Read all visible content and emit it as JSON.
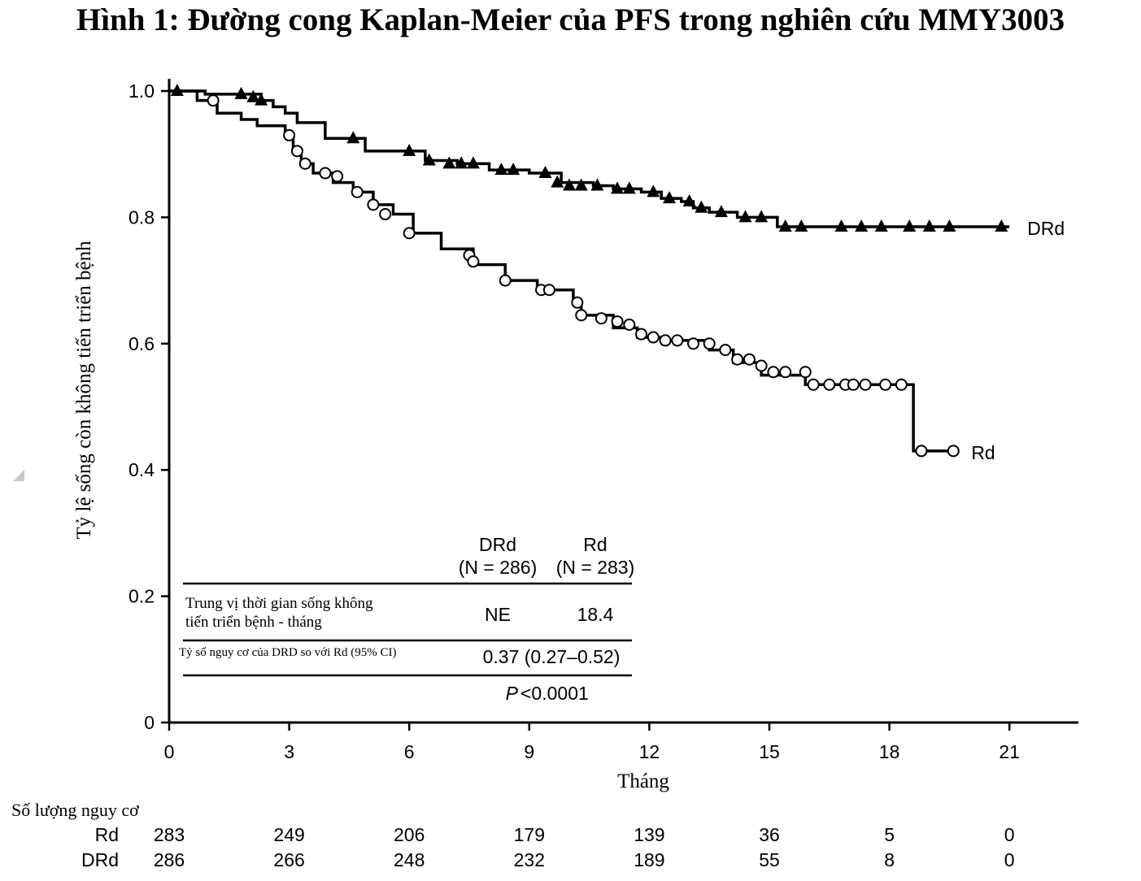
{
  "title": "Hình 1: Đường cong Kaplan-Meier của PFS trong nghiên cứu MMY3003",
  "chart_data": {
    "type": "line",
    "xlabel": "Tháng",
    "ylabel": "Tỷ lệ sống còn không tiến triển bệnh",
    "xlim": [
      0,
      22.5
    ],
    "ylim": [
      0,
      1.0
    ],
    "xticks": [
      0,
      3,
      6,
      9,
      12,
      15,
      18,
      21
    ],
    "yticks": [
      0,
      0.2,
      0.4,
      0.6,
      0.8,
      1.0
    ],
    "x_tick_labels": [
      "0",
      "3",
      "6",
      "9",
      "12",
      "15",
      "18",
      "21"
    ],
    "y_tick_labels": [
      "0",
      "0.2",
      "0.4",
      "0.6",
      "0.8",
      "1.0"
    ],
    "grid": false,
    "series": [
      {
        "name": "DRd",
        "marker": "triangle",
        "steps": [
          [
            0,
            1.0
          ],
          [
            0.9,
            0.995
          ],
          [
            2.3,
            0.985
          ],
          [
            2.6,
            0.975
          ],
          [
            2.9,
            0.965
          ],
          [
            3.2,
            0.95
          ],
          [
            3.9,
            0.925
          ],
          [
            4.9,
            0.905
          ],
          [
            6.4,
            0.89
          ],
          [
            7.2,
            0.885
          ],
          [
            8,
            0.875
          ],
          [
            9,
            0.87
          ],
          [
            9.8,
            0.855
          ],
          [
            10.6,
            0.85
          ],
          [
            11.1,
            0.845
          ],
          [
            11.8,
            0.84
          ],
          [
            12.3,
            0.83
          ],
          [
            12.8,
            0.825
          ],
          [
            13.1,
            0.815
          ],
          [
            13.5,
            0.808
          ],
          [
            14.2,
            0.8
          ],
          [
            15.2,
            0.785
          ],
          [
            21,
            0.785
          ]
        ],
        "censored": [
          [
            0.2,
            1.0
          ],
          [
            1.8,
            0.995
          ],
          [
            2.1,
            0.99
          ],
          [
            2.3,
            0.985
          ],
          [
            4.6,
            0.925
          ],
          [
            6,
            0.905
          ],
          [
            6.5,
            0.89
          ],
          [
            7,
            0.885
          ],
          [
            7.3,
            0.885
          ],
          [
            7.6,
            0.885
          ],
          [
            8.3,
            0.875
          ],
          [
            8.6,
            0.875
          ],
          [
            9.4,
            0.87
          ],
          [
            9.7,
            0.855
          ],
          [
            10,
            0.85
          ],
          [
            10.3,
            0.85
          ],
          [
            10.7,
            0.85
          ],
          [
            11.2,
            0.845
          ],
          [
            11.5,
            0.845
          ],
          [
            12.1,
            0.84
          ],
          [
            12.5,
            0.83
          ],
          [
            13,
            0.825
          ],
          [
            13.3,
            0.815
          ],
          [
            13.8,
            0.808
          ],
          [
            14.4,
            0.8
          ],
          [
            14.8,
            0.8
          ],
          [
            15.4,
            0.785
          ],
          [
            15.8,
            0.785
          ],
          [
            16.8,
            0.785
          ],
          [
            17.3,
            0.785
          ],
          [
            17.8,
            0.785
          ],
          [
            18.5,
            0.785
          ],
          [
            19,
            0.785
          ],
          [
            19.5,
            0.785
          ],
          [
            20.8,
            0.785
          ]
        ]
      },
      {
        "name": "Rd",
        "marker": "circle",
        "steps": [
          [
            0,
            1.0
          ],
          [
            0.7,
            0.985
          ],
          [
            1.2,
            0.965
          ],
          [
            1.8,
            0.955
          ],
          [
            2.2,
            0.945
          ],
          [
            2.9,
            0.93
          ],
          [
            3.1,
            0.905
          ],
          [
            3.3,
            0.885
          ],
          [
            3.6,
            0.87
          ],
          [
            4.1,
            0.855
          ],
          [
            4.6,
            0.84
          ],
          [
            5.1,
            0.82
          ],
          [
            5.6,
            0.805
          ],
          [
            6.1,
            0.775
          ],
          [
            6.8,
            0.75
          ],
          [
            7.6,
            0.725
          ],
          [
            8.4,
            0.7
          ],
          [
            9.2,
            0.685
          ],
          [
            10.1,
            0.665
          ],
          [
            10.3,
            0.645
          ],
          [
            11.1,
            0.625
          ],
          [
            11.7,
            0.61
          ],
          [
            12.4,
            0.605
          ],
          [
            13.5,
            0.59
          ],
          [
            14.1,
            0.57
          ],
          [
            14.8,
            0.55
          ],
          [
            15.9,
            0.535
          ],
          [
            18.6,
            0.43
          ],
          [
            19.6,
            0.43
          ]
        ],
        "censored": [
          [
            1.1,
            0.985
          ],
          [
            3,
            0.93
          ],
          [
            3.2,
            0.905
          ],
          [
            3.4,
            0.885
          ],
          [
            3.9,
            0.87
          ],
          [
            4.2,
            0.865
          ],
          [
            4.7,
            0.84
          ],
          [
            5.1,
            0.82
          ],
          [
            5.4,
            0.805
          ],
          [
            6,
            0.775
          ],
          [
            7.5,
            0.74
          ],
          [
            7.6,
            0.73
          ],
          [
            8.4,
            0.7
          ],
          [
            9.3,
            0.685
          ],
          [
            9.5,
            0.685
          ],
          [
            10.2,
            0.665
          ],
          [
            10.3,
            0.645
          ],
          [
            10.8,
            0.64
          ],
          [
            11.2,
            0.635
          ],
          [
            11.5,
            0.63
          ],
          [
            11.8,
            0.615
          ],
          [
            12.1,
            0.61
          ],
          [
            12.4,
            0.605
          ],
          [
            12.7,
            0.605
          ],
          [
            13.1,
            0.6
          ],
          [
            13.5,
            0.6
          ],
          [
            13.9,
            0.59
          ],
          [
            14.2,
            0.575
          ],
          [
            14.5,
            0.575
          ],
          [
            14.8,
            0.565
          ],
          [
            15.1,
            0.555
          ],
          [
            15.4,
            0.555
          ],
          [
            15.9,
            0.555
          ],
          [
            16.1,
            0.535
          ],
          [
            16.5,
            0.535
          ],
          [
            16.9,
            0.535
          ],
          [
            17.1,
            0.535
          ],
          [
            17.4,
            0.535
          ],
          [
            17.9,
            0.535
          ],
          [
            18.3,
            0.535
          ],
          [
            18.8,
            0.43
          ],
          [
            19.6,
            0.43
          ]
        ]
      }
    ],
    "stats_table": {
      "headers": [
        {
          "line1": "DRd",
          "line2": "(N = 286)"
        },
        {
          "line1": "Rd",
          "line2": "(N = 283)"
        }
      ],
      "row1_label_line1": "Trung vị thời gian sống không",
      "row1_label_line2": "tiến triển bệnh - tháng",
      "row1_drd": "NE",
      "row1_rd": "18.4",
      "row2_label": "Tỷ số nguy cơ của DRD so với Rd (95% CI)",
      "row2_value": "0.37 (0.27–0.52)",
      "p_label": "P",
      "p_value": "<0.0001"
    }
  },
  "risk_table": {
    "title": "Số lượng nguy cơ",
    "rows": [
      {
        "label": "Rd",
        "values": [
          "283",
          "249",
          "206",
          "179",
          "139",
          "36",
          "5",
          "0"
        ]
      },
      {
        "label": "DRd",
        "values": [
          "286",
          "266",
          "248",
          "232",
          "189",
          "55",
          "8",
          "0"
        ]
      }
    ]
  }
}
